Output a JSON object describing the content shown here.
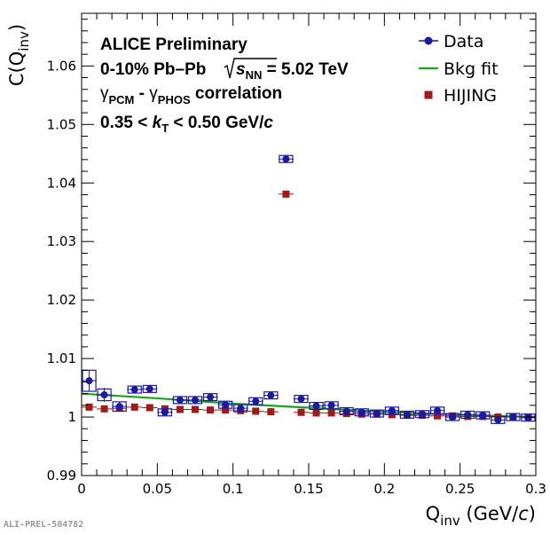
{
  "chart_data": {
    "type": "scatter",
    "xlabel": {
      "main": "Q",
      "sub": "inv",
      "unit_open": " (GeV/",
      "unit_var": "c",
      "unit_close": ")"
    },
    "ylabel": {
      "main": "C(Q",
      "sub": "inv",
      "close": ")"
    },
    "xlim": [
      0,
      0.3
    ],
    "ylim": [
      0.99,
      1.069
    ],
    "x_ticks": [
      0,
      0.05,
      0.1,
      0.15,
      0.2,
      0.25,
      0.3
    ],
    "x_tick_labels": [
      "0",
      "0.05",
      "0.1",
      "0.15",
      "0.2",
      "0.25",
      "0.3"
    ],
    "y_ticks": [
      0.99,
      1.0,
      1.01,
      1.02,
      1.03,
      1.04,
      1.05,
      1.06
    ],
    "y_tick_labels": [
      "0.99",
      "1",
      "1.01",
      "1.02",
      "1.03",
      "1.04",
      "1.05",
      "1.06"
    ],
    "annotations": {
      "line1": "ALICE Preliminary",
      "line2_a": "0-10% Pb",
      "line2_dash": "–",
      "line2_b": "Pb",
      "line2_s": "s",
      "line2_nn": "NN",
      "line2_val": " = 5.02 TeV",
      "line3_g1": "γ",
      "line3_pcm": "PCM",
      "line3_dash": " - ",
      "line3_g2": "γ",
      "line3_phos": "PHOS",
      "line3_rest": " correlation",
      "line4_a": "0.35 < ",
      "line4_k": "k",
      "line4_t": "T",
      "line4_b": " < 0.50 GeV/",
      "line4_c": "c"
    },
    "legend": {
      "placement": "top-right",
      "entries": [
        "Data",
        "Bkg fit",
        "HIJING"
      ]
    },
    "series": [
      {
        "name": "Data",
        "marker": "circle",
        "color": "#1a1aa0",
        "points": [
          {
            "x": 0.005,
            "y": 1.0062,
            "yerr": 0.0018,
            "sys": 0.0018
          },
          {
            "x": 0.015,
            "y": 1.0038,
            "yerr": 0.0012,
            "sys": 0.001
          },
          {
            "x": 0.025,
            "y": 1.0018,
            "yerr": 0.0008,
            "sys": 0.0008
          },
          {
            "x": 0.035,
            "y": 1.0047,
            "yerr": 0.0004,
            "sys": 0.0006
          },
          {
            "x": 0.045,
            "y": 1.0048,
            "yerr": 0.0004,
            "sys": 0.0006
          },
          {
            "x": 0.055,
            "y": 1.0008,
            "yerr": 0.0004,
            "sys": 0.0006
          },
          {
            "x": 0.065,
            "y": 1.0029,
            "yerr": 0.0004,
            "sys": 0.0006
          },
          {
            "x": 0.075,
            "y": 1.0029,
            "yerr": 0.0004,
            "sys": 0.0006
          },
          {
            "x": 0.085,
            "y": 1.0034,
            "yerr": 0.0004,
            "sys": 0.0006
          },
          {
            "x": 0.095,
            "y": 1.0021,
            "yerr": 0.0004,
            "sys": 0.0006
          },
          {
            "x": 0.105,
            "y": 1.0015,
            "yerr": 0.0004,
            "sys": 0.0006
          },
          {
            "x": 0.115,
            "y": 1.0027,
            "yerr": 0.0004,
            "sys": 0.0006
          },
          {
            "x": 0.125,
            "y": 1.0037,
            "yerr": 0.0004,
            "sys": 0.0006
          },
          {
            "x": 0.135,
            "y": 1.0441,
            "yerr": 0.0004,
            "sys": 0.0006
          },
          {
            "x": 0.145,
            "y": 1.0031,
            "yerr": 0.0004,
            "sys": 0.0006
          },
          {
            "x": 0.155,
            "y": 1.0019,
            "yerr": 0.0004,
            "sys": 0.0006
          },
          {
            "x": 0.165,
            "y": 1.002,
            "yerr": 0.0004,
            "sys": 0.0006
          },
          {
            "x": 0.175,
            "y": 1.001,
            "yerr": 0.0004,
            "sys": 0.0006
          },
          {
            "x": 0.185,
            "y": 1.0008,
            "yerr": 0.0004,
            "sys": 0.0006
          },
          {
            "x": 0.195,
            "y": 1.0006,
            "yerr": 0.0004,
            "sys": 0.0006
          },
          {
            "x": 0.205,
            "y": 1.0011,
            "yerr": 0.0004,
            "sys": 0.0006
          },
          {
            "x": 0.215,
            "y": 1.0004,
            "yerr": 0.0004,
            "sys": 0.0006
          },
          {
            "x": 0.225,
            "y": 1.0005,
            "yerr": 0.0004,
            "sys": 0.0006
          },
          {
            "x": 0.235,
            "y": 1.0011,
            "yerr": 0.0004,
            "sys": 0.0006
          },
          {
            "x": 0.245,
            "y": 1.0,
            "yerr": 0.0004,
            "sys": 0.0006
          },
          {
            "x": 0.255,
            "y": 1.0004,
            "yerr": 0.0004,
            "sys": 0.0006
          },
          {
            "x": 0.265,
            "y": 1.0003,
            "yerr": 0.0004,
            "sys": 0.0006
          },
          {
            "x": 0.275,
            "y": 0.9995,
            "yerr": 0.0004,
            "sys": 0.0006
          },
          {
            "x": 0.285,
            "y": 1.0,
            "yerr": 0.0004,
            "sys": 0.0006
          },
          {
            "x": 0.295,
            "y": 0.9999,
            "yerr": 0.0004,
            "sys": 0.0006
          }
        ]
      },
      {
        "name": "Bkg fit",
        "type": "line",
        "color": "#1fa01f",
        "x": [
          0.0,
          0.05,
          0.1,
          0.15,
          0.2,
          0.25,
          0.3
        ],
        "y": [
          1.004,
          1.0032,
          1.0023,
          1.0016,
          1.0009,
          1.0004,
          1.0
        ]
      },
      {
        "name": "HIJING",
        "marker": "square",
        "color": "#a01a1a",
        "points": [
          {
            "x": 0.005,
            "y": 1.0017
          },
          {
            "x": 0.015,
            "y": 1.0014
          },
          {
            "x": 0.025,
            "y": 1.0015
          },
          {
            "x": 0.035,
            "y": 1.0017
          },
          {
            "x": 0.045,
            "y": 1.0016
          },
          {
            "x": 0.055,
            "y": 1.0014
          },
          {
            "x": 0.065,
            "y": 1.0013
          },
          {
            "x": 0.075,
            "y": 1.0013
          },
          {
            "x": 0.085,
            "y": 1.0012
          },
          {
            "x": 0.095,
            "y": 1.0012
          },
          {
            "x": 0.105,
            "y": 1.0011
          },
          {
            "x": 0.115,
            "y": 1.001
          },
          {
            "x": 0.125,
            "y": 1.0009
          },
          {
            "x": 0.135,
            "y": 1.0381
          },
          {
            "x": 0.145,
            "y": 1.0008
          },
          {
            "x": 0.155,
            "y": 1.0007
          },
          {
            "x": 0.165,
            "y": 1.0007
          },
          {
            "x": 0.175,
            "y": 1.0006
          },
          {
            "x": 0.185,
            "y": 1.0005
          },
          {
            "x": 0.195,
            "y": 1.0005
          },
          {
            "x": 0.205,
            "y": 1.0004
          },
          {
            "x": 0.215,
            "y": 1.0003
          },
          {
            "x": 0.225,
            "y": 1.0003
          },
          {
            "x": 0.235,
            "y": 1.0002
          },
          {
            "x": 0.245,
            "y": 1.0002
          },
          {
            "x": 0.255,
            "y": 1.0001
          },
          {
            "x": 0.265,
            "y": 1.0001
          },
          {
            "x": 0.275,
            "y": 1.0
          },
          {
            "x": 0.285,
            "y": 1.0
          },
          {
            "x": 0.295,
            "y": 1.0
          }
        ]
      }
    ],
    "watermark": "ALI-PREL-504782"
  }
}
